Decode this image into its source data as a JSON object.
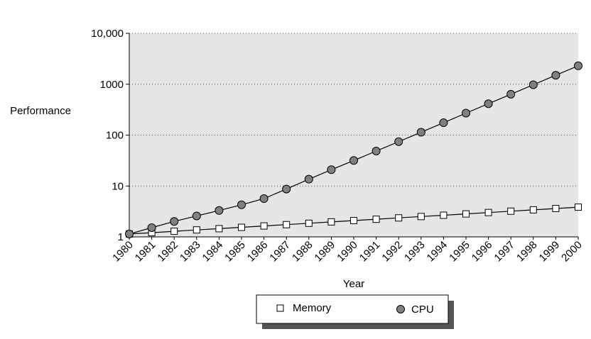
{
  "chart_data": {
    "type": "line",
    "title": "",
    "xlabel": "Year",
    "ylabel": "Performance",
    "y_scale": "log",
    "ylim": [
      1,
      10000
    ],
    "y_ticks": [
      {
        "value": 1,
        "label": "1"
      },
      {
        "value": 10,
        "label": "10"
      },
      {
        "value": 100,
        "label": "100"
      },
      {
        "value": 1000,
        "label": "1000"
      },
      {
        "value": 10000,
        "label": "10,000"
      }
    ],
    "x": [
      "1980",
      "1981",
      "1982",
      "1983",
      "1984",
      "1985",
      "1986",
      "1987",
      "1988",
      "1989",
      "1990",
      "1991",
      "1992",
      "1993",
      "1994",
      "1995",
      "1996",
      "1997",
      "1998",
      "1999",
      "2000"
    ],
    "grid": "horizontal dotted",
    "plot_background": "#e6e6e6",
    "legend_position": "bottom-center",
    "series": [
      {
        "name": "Memory",
        "marker": "square",
        "marker_fill": "#ffffff",
        "values": [
          1.14,
          1.21,
          1.29,
          1.37,
          1.45,
          1.54,
          1.64,
          1.74,
          1.85,
          1.97,
          2.09,
          2.22,
          2.36,
          2.51,
          2.66,
          2.83,
          3.01,
          3.2,
          3.4,
          3.61,
          3.84
        ]
      },
      {
        "name": "CPU",
        "marker": "circle",
        "marker_fill": "#808080",
        "values": [
          1.14,
          1.52,
          2.01,
          2.58,
          3.3,
          4.27,
          5.65,
          8.7,
          13.6,
          20.9,
          31.7,
          48.5,
          74.3,
          114,
          175,
          270,
          414,
          636,
          977,
          1500,
          2300
        ]
      }
    ]
  }
}
